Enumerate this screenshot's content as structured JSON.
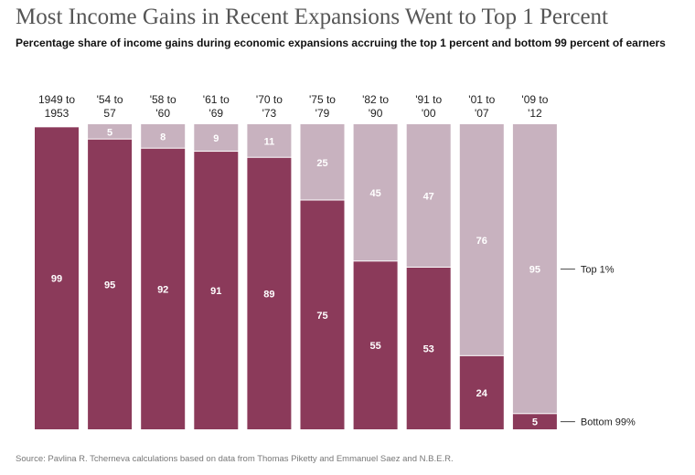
{
  "title": "Most Income Gains in Recent Expansions Went to Top 1 Percent",
  "subtitle": "Percentage share of income gains during economic expansions accruing the top 1 percent and bottom 99 percent of earners",
  "source": "Source: Pavlina R. Tcherneva calculations based on data from Thomas Piketty and Emmanuel Saez and N.B.E.R.",
  "colors": {
    "bottom": "#8b3a5a",
    "top": "#c8b2bf"
  },
  "chart_data": {
    "type": "bar",
    "stacked": true,
    "categories": [
      [
        "1949 to",
        "1953"
      ],
      [
        "'54 to",
        "57"
      ],
      [
        "'58 to",
        "'60"
      ],
      [
        "'61 to",
        "'69"
      ],
      [
        "'70 to",
        "'73"
      ],
      [
        "'75 to",
        "'79"
      ],
      [
        "'82 to",
        "'90"
      ],
      [
        "'91 to",
        "'00"
      ],
      [
        "'01 to",
        "'07"
      ],
      [
        "'09 to",
        "'12"
      ]
    ],
    "series": [
      {
        "name": "Bottom 99%",
        "values": [
          99,
          95,
          92,
          91,
          89,
          75,
          55,
          53,
          24,
          5
        ]
      },
      {
        "name": "Top 1%",
        "values": [
          null,
          5,
          8,
          9,
          11,
          25,
          45,
          47,
          76,
          95
        ]
      }
    ],
    "ylim": [
      0,
      100
    ],
    "legend": "right"
  }
}
